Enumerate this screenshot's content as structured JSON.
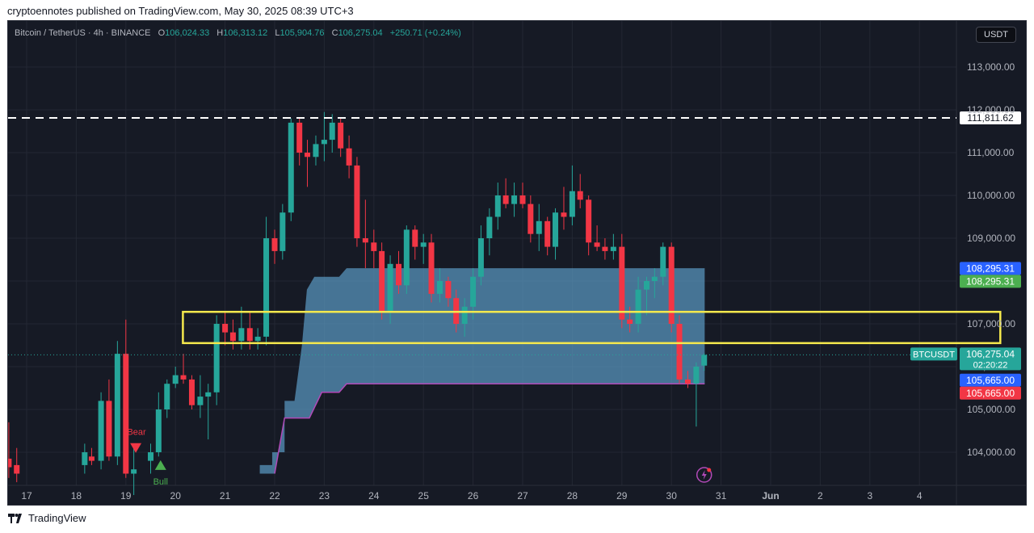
{
  "published_line": "cryptoennotes published on TradingView.com, May 30, 2025 08:39 UTC+3",
  "legend": {
    "symbol": "Bitcoin / TetherUS · 4h · BINANCE",
    "o_label": "O",
    "o": "106,024.33",
    "h_label": "H",
    "h": "106,313.12",
    "l_label": "L",
    "l": "105,904.76",
    "c_label": "C",
    "c": "106,275.04",
    "change": "+250.71 (+0.24%)"
  },
  "currency": "USDT",
  "footer": {
    "brand": "TradingView"
  },
  "colors": {
    "up": "#26a69a",
    "down": "#f23645",
    "background": "#161a25",
    "zone": "#5b9bc4",
    "highlight": "#f5e94d",
    "dashed_line": "#ffffff"
  },
  "chart_data": {
    "type": "candlestick",
    "ylim": [
      103500,
      114000
    ],
    "y_ticks": [
      104000,
      105000,
      106000,
      107000,
      108000,
      109000,
      110000,
      111000,
      112000,
      113000
    ],
    "y_tick_labels": [
      "104,000.00",
      "105,000.00",
      "106,000.00",
      "107,000.00",
      "108,000.00",
      "109,000.00",
      "110,000.00",
      "111,000.00",
      "112,000.00",
      "113,000.00"
    ],
    "x_ticks": [
      {
        "t": 0,
        "label": "17"
      },
      {
        "t": 1,
        "label": "18"
      },
      {
        "t": 2,
        "label": "19"
      },
      {
        "t": 3,
        "label": "20"
      },
      {
        "t": 4,
        "label": "21"
      },
      {
        "t": 5,
        "label": "22"
      },
      {
        "t": 6,
        "label": "23"
      },
      {
        "t": 7,
        "label": "24"
      },
      {
        "t": 8,
        "label": "25"
      },
      {
        "t": 9,
        "label": "26"
      },
      {
        "t": 10,
        "label": "27"
      },
      {
        "t": 11,
        "label": "28"
      },
      {
        "t": 12,
        "label": "29"
      },
      {
        "t": 13,
        "label": "30"
      },
      {
        "t": 14,
        "label": "31"
      },
      {
        "t": 15,
        "label": "Jun"
      },
      {
        "t": 16,
        "label": "2"
      },
      {
        "t": 17,
        "label": "3"
      },
      {
        "t": 18,
        "label": "4"
      }
    ],
    "candles": [
      {
        "t": -0.36,
        "o": 103850,
        "h": 104700,
        "l": 103400,
        "c": 103650
      },
      {
        "t": -0.2,
        "o": 103700,
        "h": 104100,
        "l": 103300,
        "c": 103500
      },
      {
        "t": 1.17,
        "o": 103700,
        "h": 104200,
        "l": 103500,
        "c": 104000
      },
      {
        "t": 1.31,
        "o": 103900,
        "h": 104100,
        "l": 103700,
        "c": 103800
      },
      {
        "t": 1.5,
        "o": 103800,
        "h": 105400,
        "l": 103600,
        "c": 105200
      },
      {
        "t": 1.66,
        "o": 105200,
        "h": 105700,
        "l": 103800,
        "c": 103900
      },
      {
        "t": 1.83,
        "o": 103900,
        "h": 106600,
        "l": 103700,
        "c": 106300
      },
      {
        "t": 2.0,
        "o": 106300,
        "h": 107100,
        "l": 103400,
        "c": 103500
      },
      {
        "t": 2.16,
        "o": 103500,
        "h": 104200,
        "l": 103000,
        "c": 103600
      },
      {
        "t": 2.5,
        "o": 103800,
        "h": 104200,
        "l": 103500,
        "c": 104000
      },
      {
        "t": 2.66,
        "o": 104000,
        "h": 105400,
        "l": 103900,
        "c": 105000
      },
      {
        "t": 2.83,
        "o": 105000,
        "h": 105700,
        "l": 104800,
        "c": 105600
      },
      {
        "t": 3.0,
        "o": 105600,
        "h": 106000,
        "l": 105500,
        "c": 105800
      },
      {
        "t": 3.16,
        "o": 105800,
        "h": 106300,
        "l": 105600,
        "c": 105700
      },
      {
        "t": 3.33,
        "o": 105700,
        "h": 105800,
        "l": 105000,
        "c": 105100
      },
      {
        "t": 3.5,
        "o": 105100,
        "h": 105800,
        "l": 104800,
        "c": 105300
      },
      {
        "t": 3.66,
        "o": 105300,
        "h": 105600,
        "l": 104300,
        "c": 105400
      },
      {
        "t": 3.83,
        "o": 105400,
        "h": 107200,
        "l": 105100,
        "c": 107000
      },
      {
        "t": 4.0,
        "o": 107000,
        "h": 107300,
        "l": 106500,
        "c": 106800
      },
      {
        "t": 4.16,
        "o": 106800,
        "h": 107100,
        "l": 106400,
        "c": 106600
      },
      {
        "t": 4.33,
        "o": 106600,
        "h": 107400,
        "l": 106400,
        "c": 106900
      },
      {
        "t": 4.5,
        "o": 106900,
        "h": 107300,
        "l": 106400,
        "c": 106600
      },
      {
        "t": 4.66,
        "o": 106600,
        "h": 106900,
        "l": 106400,
        "c": 106700
      },
      {
        "t": 4.83,
        "o": 106700,
        "h": 109500,
        "l": 106500,
        "c": 109000
      },
      {
        "t": 5.0,
        "o": 109000,
        "h": 109200,
        "l": 108400,
        "c": 108700
      },
      {
        "t": 5.16,
        "o": 108700,
        "h": 109800,
        "l": 108500,
        "c": 109600
      },
      {
        "t": 5.33,
        "o": 109600,
        "h": 111800,
        "l": 109400,
        "c": 111700
      },
      {
        "t": 5.5,
        "o": 111700,
        "h": 111800,
        "l": 110700,
        "c": 111000
      },
      {
        "t": 5.66,
        "o": 111000,
        "h": 111300,
        "l": 110200,
        "c": 110900
      },
      {
        "t": 5.83,
        "o": 110900,
        "h": 111400,
        "l": 110700,
        "c": 111200
      },
      {
        "t": 6.0,
        "o": 111200,
        "h": 111950,
        "l": 110800,
        "c": 111300
      },
      {
        "t": 6.16,
        "o": 111300,
        "h": 111900,
        "l": 111000,
        "c": 111700
      },
      {
        "t": 6.33,
        "o": 111700,
        "h": 111800,
        "l": 110900,
        "c": 111100
      },
      {
        "t": 6.5,
        "o": 111100,
        "h": 111400,
        "l": 110400,
        "c": 110700
      },
      {
        "t": 6.66,
        "o": 110700,
        "h": 110900,
        "l": 108800,
        "c": 109000
      },
      {
        "t": 6.83,
        "o": 109000,
        "h": 109900,
        "l": 108300,
        "c": 108900
      },
      {
        "t": 7.0,
        "o": 108900,
        "h": 109200,
        "l": 108300,
        "c": 108700
      },
      {
        "t": 7.16,
        "o": 108700,
        "h": 108900,
        "l": 107100,
        "c": 107300
      },
      {
        "t": 7.33,
        "o": 107300,
        "h": 108600,
        "l": 107000,
        "c": 108400
      },
      {
        "t": 7.5,
        "o": 108400,
        "h": 108700,
        "l": 107700,
        "c": 107900
      },
      {
        "t": 7.66,
        "o": 107900,
        "h": 109300,
        "l": 107700,
        "c": 109200
      },
      {
        "t": 7.83,
        "o": 109200,
        "h": 109300,
        "l": 108500,
        "c": 108800
      },
      {
        "t": 8.0,
        "o": 108800,
        "h": 109100,
        "l": 108400,
        "c": 108900
      },
      {
        "t": 8.16,
        "o": 108900,
        "h": 109100,
        "l": 107500,
        "c": 107700
      },
      {
        "t": 8.33,
        "o": 107700,
        "h": 108300,
        "l": 107500,
        "c": 108000
      },
      {
        "t": 8.5,
        "o": 108000,
        "h": 108100,
        "l": 107400,
        "c": 107600
      },
      {
        "t": 8.66,
        "o": 107600,
        "h": 107800,
        "l": 106800,
        "c": 107000
      },
      {
        "t": 8.83,
        "o": 107000,
        "h": 107600,
        "l": 106700,
        "c": 107400
      },
      {
        "t": 9.0,
        "o": 107400,
        "h": 108300,
        "l": 107100,
        "c": 108100
      },
      {
        "t": 9.16,
        "o": 108100,
        "h": 109300,
        "l": 107900,
        "c": 109000
      },
      {
        "t": 9.33,
        "o": 109000,
        "h": 109700,
        "l": 108600,
        "c": 109500
      },
      {
        "t": 9.5,
        "o": 109500,
        "h": 110300,
        "l": 109200,
        "c": 110000
      },
      {
        "t": 9.66,
        "o": 110000,
        "h": 110400,
        "l": 109700,
        "c": 109800
      },
      {
        "t": 9.83,
        "o": 109800,
        "h": 110300,
        "l": 109500,
        "c": 110000
      },
      {
        "t": 10.0,
        "o": 110000,
        "h": 110300,
        "l": 109700,
        "c": 109800
      },
      {
        "t": 10.16,
        "o": 109800,
        "h": 110000,
        "l": 108900,
        "c": 109100
      },
      {
        "t": 10.33,
        "o": 109100,
        "h": 109800,
        "l": 108700,
        "c": 109400
      },
      {
        "t": 10.5,
        "o": 109400,
        "h": 109500,
        "l": 108600,
        "c": 108800
      },
      {
        "t": 10.66,
        "o": 108800,
        "h": 109700,
        "l": 108500,
        "c": 109600
      },
      {
        "t": 10.83,
        "o": 109600,
        "h": 110200,
        "l": 109200,
        "c": 109500
      },
      {
        "t": 11.0,
        "o": 109500,
        "h": 110700,
        "l": 109300,
        "c": 110100
      },
      {
        "t": 11.16,
        "o": 110100,
        "h": 110500,
        "l": 109700,
        "c": 109900
      },
      {
        "t": 11.33,
        "o": 109900,
        "h": 110000,
        "l": 108600,
        "c": 108900
      },
      {
        "t": 11.5,
        "o": 108900,
        "h": 109300,
        "l": 108700,
        "c": 108800
      },
      {
        "t": 11.66,
        "o": 108800,
        "h": 109000,
        "l": 108500,
        "c": 108700
      },
      {
        "t": 11.83,
        "o": 108700,
        "h": 109100,
        "l": 108500,
        "c": 108800
      },
      {
        "t": 12.0,
        "o": 108800,
        "h": 109100,
        "l": 106900,
        "c": 107100
      },
      {
        "t": 12.16,
        "o": 107100,
        "h": 107400,
        "l": 106800,
        "c": 107000
      },
      {
        "t": 12.33,
        "o": 107000,
        "h": 108100,
        "l": 106800,
        "c": 107800
      },
      {
        "t": 12.5,
        "o": 107800,
        "h": 108100,
        "l": 107200,
        "c": 108000
      },
      {
        "t": 12.66,
        "o": 108000,
        "h": 108300,
        "l": 107600,
        "c": 108100
      },
      {
        "t": 12.83,
        "o": 108100,
        "h": 108900,
        "l": 107900,
        "c": 108800
      },
      {
        "t": 13.0,
        "o": 108800,
        "h": 108900,
        "l": 106800,
        "c": 107000
      },
      {
        "t": 13.16,
        "o": 107000,
        "h": 107200,
        "l": 105600,
        "c": 105700
      },
      {
        "t": 13.33,
        "o": 105700,
        "h": 105900,
        "l": 105500,
        "c": 105600
      },
      {
        "t": 13.5,
        "o": 105600,
        "h": 106100,
        "l": 104600,
        "c": 106000
      },
      {
        "t": 13.66,
        "o": 106024,
        "h": 106313,
        "l": 105905,
        "c": 106275
      }
    ],
    "zone": {
      "x_start": 3.9,
      "x_end": 13.67,
      "upper_label": "zone-top",
      "upper": [
        {
          "t": 4.7,
          "y": 103500
        },
        {
          "t": 4.7,
          "y": 103700
        },
        {
          "t": 4.95,
          "y": 103700
        },
        {
          "t": 4.95,
          "y": 104000
        },
        {
          "t": 5.2,
          "y": 104000
        },
        {
          "t": 5.2,
          "y": 105200
        },
        {
          "t": 5.4,
          "y": 105200
        },
        {
          "t": 5.55,
          "y": 106500
        },
        {
          "t": 5.65,
          "y": 107800
        },
        {
          "t": 5.8,
          "y": 108100
        },
        {
          "t": 6.3,
          "y": 108100
        },
        {
          "t": 6.45,
          "y": 108300
        },
        {
          "t": 13.67,
          "y": 108300
        }
      ],
      "lower": [
        {
          "t": 5.0,
          "y": 103500
        },
        {
          "t": 5.2,
          "y": 104800
        },
        {
          "t": 5.7,
          "y": 104800
        },
        {
          "t": 5.95,
          "y": 105400
        },
        {
          "t": 6.3,
          "y": 105400
        },
        {
          "t": 6.45,
          "y": 105600
        },
        {
          "t": 13.67,
          "y": 105600
        }
      ]
    },
    "highlight_box": {
      "x_start": 3.15,
      "x_end": 19.63,
      "y_top": 107280,
      "y_bottom": 106550
    },
    "dashed_level": {
      "value": 111811.62,
      "label": "111,811.62"
    },
    "price_badges": [
      {
        "value": 108295.31,
        "label": "108,295.31",
        "color": "#2962ff"
      },
      {
        "value": 108295.31,
        "label": "108,295.31",
        "color": "#4caf50"
      },
      {
        "value": 106275.04,
        "label": "106,275.04",
        "sub": "02:20:22",
        "color": "#26a69a",
        "ticker": "BTCUSDT"
      },
      {
        "value": 105665.0,
        "label": "105,665.00",
        "color": "#2962ff"
      },
      {
        "value": 105665.0,
        "label": "105,665.00",
        "color": "#f23645"
      }
    ],
    "signals": [
      {
        "type": "bear",
        "text": "Bear",
        "t": 2.2,
        "price": 104100
      },
      {
        "type": "bull",
        "text": "Bull",
        "t": 2.7,
        "price": 103700
      }
    ]
  }
}
